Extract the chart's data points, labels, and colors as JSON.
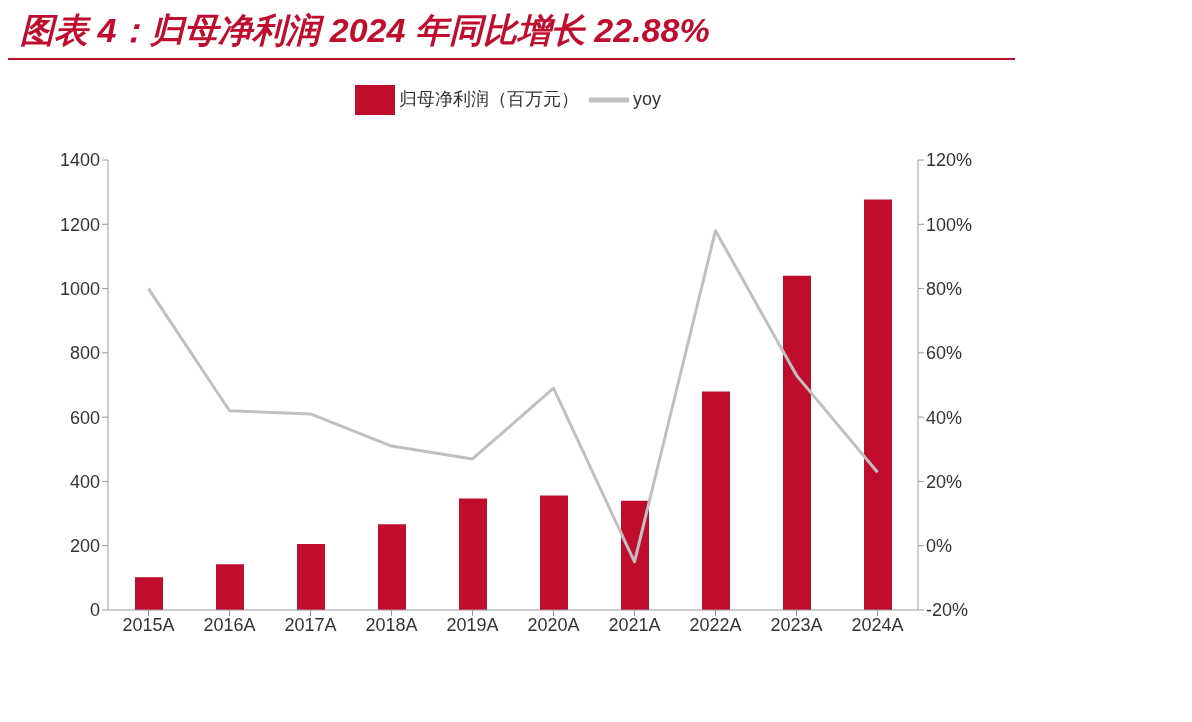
{
  "chart_data": {
    "type": "bar",
    "title": "图表 4：归母净利润 2024 年同比增长 22.88%",
    "categories": [
      "2015A",
      "2016A",
      "2017A",
      "2018A",
      "2019A",
      "2020A",
      "2021A",
      "2022A",
      "2023A",
      "2024A"
    ],
    "series": [
      {
        "name": "归母净利润（百万元）",
        "color": "#c00d2d",
        "values": [
          102,
          142,
          205,
          267,
          347,
          356,
          340,
          680,
          1040,
          1277
        ]
      },
      {
        "name": "yoy",
        "type": "line",
        "axis": "y2",
        "color": "#c0c0c0",
        "values": [
          80,
          42,
          41,
          31,
          27,
          49,
          -5,
          98,
          53,
          22.88
        ]
      }
    ],
    "ylim": [
      0,
      1400
    ],
    "yticks": [
      0,
      200,
      400,
      600,
      800,
      1000,
      1200,
      1400
    ],
    "y2lim": [
      -20,
      120
    ],
    "y2ticks": [
      {
        "value": -20,
        "label": "-20%"
      },
      {
        "value": 0,
        "label": "0%"
      },
      {
        "value": 20,
        "label": "20%"
      },
      {
        "value": 40,
        "label": "40%"
      },
      {
        "value": 60,
        "label": "60%"
      },
      {
        "value": 80,
        "label": "80%"
      },
      {
        "value": 100,
        "label": "100%"
      },
      {
        "value": 120,
        "label": "120%"
      }
    ],
    "grid": false,
    "legend": "top",
    "marker": "none",
    "line_style": "solid"
  }
}
